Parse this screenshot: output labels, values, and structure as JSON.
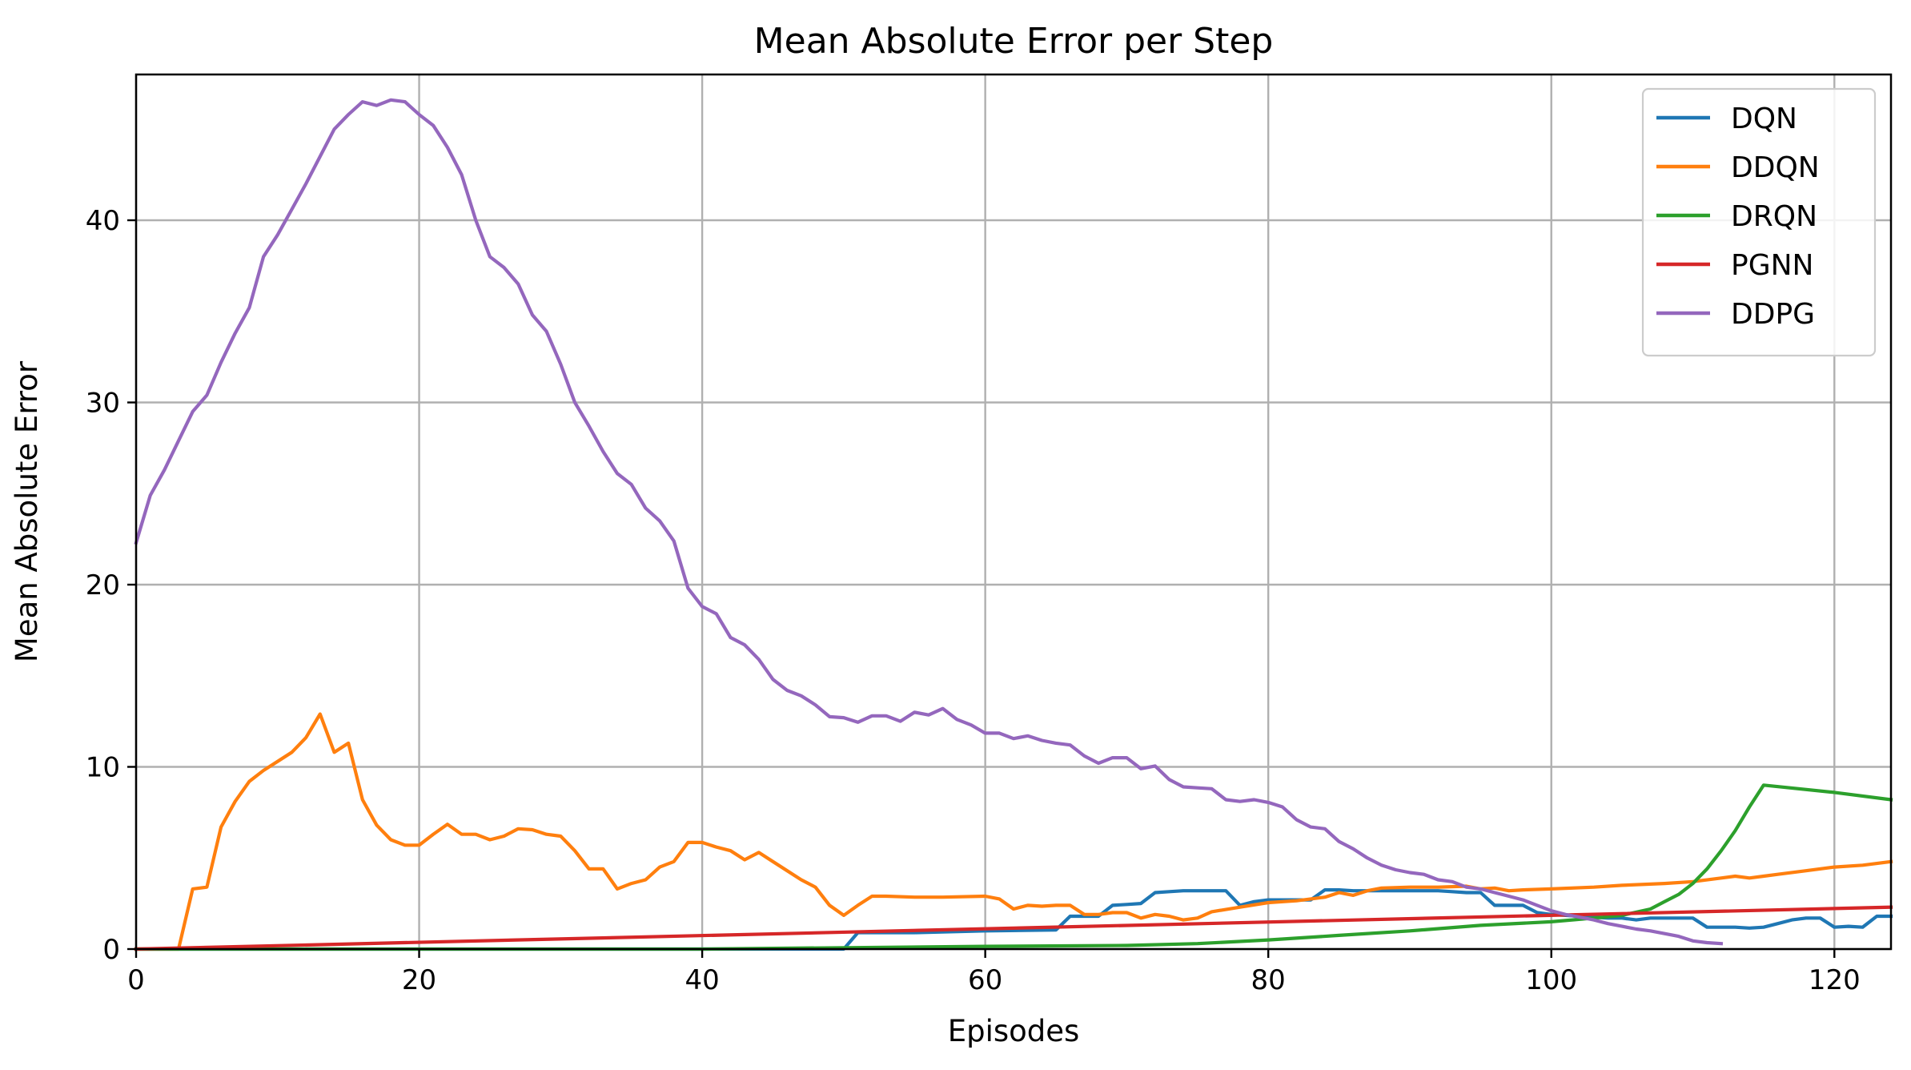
{
  "chart_data": {
    "type": "line",
    "title": "Mean Absolute Error per Step",
    "xlabel": "Episodes",
    "ylabel": "Mean Absolute Error",
    "xlim": [
      0,
      124
    ],
    "ylim": [
      0,
      48
    ],
    "xticks": [
      0,
      20,
      40,
      60,
      80,
      100,
      120
    ],
    "yticks": [
      0,
      10,
      20,
      30,
      40
    ],
    "grid": true,
    "legend_position": "top-right",
    "series": [
      {
        "name": "DQN",
        "color": "#1f77b4",
        "x": [
          0,
          50,
          51,
          52,
          55,
          60,
          65,
          66,
          67,
          68,
          69,
          70,
          71,
          72,
          73,
          74,
          75,
          76,
          77,
          78,
          79,
          80,
          81,
          82,
          83,
          84,
          85,
          86,
          87,
          88,
          90,
          92,
          93,
          94,
          95,
          96,
          97,
          98,
          99,
          100,
          102,
          104,
          105,
          106,
          107,
          108,
          110,
          111,
          112,
          113,
          114,
          115,
          116,
          117,
          118,
          119,
          120,
          121,
          122,
          123,
          124
        ],
        "y": [
          0,
          0,
          0.9,
          0.9,
          0.9,
          1.0,
          1.05,
          1.8,
          1.8,
          1.8,
          2.4,
          2.45,
          2.5,
          3.1,
          3.15,
          3.2,
          3.2,
          3.2,
          3.2,
          2.4,
          2.6,
          2.7,
          2.7,
          2.7,
          2.7,
          3.25,
          3.25,
          3.2,
          3.2,
          3.2,
          3.2,
          3.2,
          3.15,
          3.1,
          3.1,
          2.4,
          2.4,
          2.4,
          2.0,
          1.9,
          1.8,
          1.7,
          1.7,
          1.6,
          1.7,
          1.7,
          1.7,
          1.2,
          1.2,
          1.2,
          1.15,
          1.2,
          1.4,
          1.6,
          1.7,
          1.7,
          1.2,
          1.25,
          1.2,
          1.8,
          1.8
        ]
      },
      {
        "name": "DDQN",
        "color": "#ff7f0e",
        "x": [
          0,
          1,
          2,
          3,
          4,
          5,
          6,
          7,
          8,
          9,
          10,
          11,
          12,
          13,
          14,
          15,
          16,
          17,
          18,
          19,
          20,
          21,
          22,
          23,
          24,
          25,
          26,
          27,
          28,
          29,
          30,
          31,
          32,
          33,
          34,
          35,
          36,
          37,
          38,
          39,
          40,
          41,
          42,
          43,
          44,
          45,
          46,
          47,
          48,
          49,
          50,
          51,
          52,
          53,
          55,
          57,
          60,
          61,
          62,
          63,
          64,
          65,
          66,
          67,
          68,
          69,
          70,
          71,
          72,
          73,
          74,
          75,
          76,
          78,
          80,
          82,
          84,
          85,
          86,
          87,
          88,
          90,
          92,
          94,
          95,
          96,
          97,
          98,
          100,
          103,
          105,
          108,
          110,
          112,
          113,
          114,
          115,
          116,
          118,
          120,
          122,
          124
        ],
        "y": [
          0,
          0,
          0,
          0,
          3.3,
          3.4,
          6.7,
          8.1,
          9.2,
          9.8,
          10.3,
          10.8,
          11.6,
          12.9,
          10.8,
          11.3,
          8.2,
          6.8,
          6.0,
          5.7,
          5.7,
          6.3,
          6.85,
          6.3,
          6.3,
          6.0,
          6.2,
          6.6,
          6.55,
          6.3,
          6.2,
          5.4,
          4.4,
          4.4,
          3.3,
          3.6,
          3.8,
          4.5,
          4.8,
          5.85,
          5.85,
          5.6,
          5.4,
          4.9,
          5.3,
          4.8,
          4.3,
          3.8,
          3.4,
          2.4,
          1.85,
          2.4,
          2.9,
          2.9,
          2.85,
          2.85,
          2.9,
          2.75,
          2.2,
          2.4,
          2.35,
          2.4,
          2.4,
          1.9,
          1.9,
          2.0,
          2.0,
          1.7,
          1.9,
          1.8,
          1.6,
          1.7,
          2.05,
          2.3,
          2.55,
          2.65,
          2.85,
          3.1,
          2.95,
          3.2,
          3.35,
          3.4,
          3.4,
          3.45,
          3.3,
          3.35,
          3.2,
          3.25,
          3.3,
          3.4,
          3.5,
          3.6,
          3.7,
          3.9,
          4.0,
          3.9,
          4.0,
          4.1,
          4.3,
          4.5,
          4.6,
          4.8
        ]
      },
      {
        "name": "DRQN",
        "color": "#2ca02c",
        "x": [
          0,
          40,
          60,
          70,
          75,
          80,
          85,
          90,
          95,
          100,
          103,
          105,
          107,
          108,
          109,
          110,
          111,
          112,
          113,
          114,
          115,
          120,
          124
        ],
        "y": [
          0,
          0,
          0.15,
          0.2,
          0.3,
          0.5,
          0.75,
          1.0,
          1.3,
          1.5,
          1.7,
          1.85,
          2.2,
          2.6,
          3.0,
          3.6,
          4.4,
          5.4,
          6.5,
          7.8,
          9.0,
          8.6,
          8.2
        ]
      },
      {
        "name": "PGNN",
        "color": "#d62728",
        "x": [
          0,
          124
        ],
        "y": [
          0,
          2.3
        ]
      },
      {
        "name": "DDPG",
        "color": "#9467bd",
        "x": [
          0,
          1,
          2,
          3,
          4,
          5,
          6,
          7,
          8,
          9,
          10,
          11,
          12,
          13,
          14,
          15,
          16,
          17,
          18,
          19,
          20,
          21,
          22,
          23,
          24,
          25,
          26,
          27,
          28,
          29,
          30,
          31,
          32,
          33,
          34,
          35,
          36,
          37,
          38,
          39,
          40,
          41,
          42,
          43,
          44,
          45,
          46,
          47,
          48,
          49,
          50,
          51,
          52,
          53,
          54,
          55,
          56,
          57,
          58,
          59,
          60,
          61,
          62,
          63,
          64,
          65,
          66,
          67,
          68,
          69,
          70,
          71,
          72,
          73,
          74,
          75,
          76,
          77,
          78,
          79,
          80,
          81,
          82,
          83,
          84,
          85,
          86,
          87,
          88,
          89,
          90,
          91,
          92,
          93,
          94,
          95,
          96,
          97,
          98,
          99,
          100,
          101,
          102,
          103,
          104,
          105,
          106,
          107,
          108,
          109,
          110,
          111,
          112
        ],
        "y": [
          22.3,
          24.9,
          26.3,
          27.9,
          29.5,
          30.4,
          32.2,
          33.8,
          35.2,
          38.0,
          39.2,
          40.6,
          42.0,
          43.5,
          45.0,
          45.8,
          46.5,
          46.3,
          46.6,
          46.5,
          45.8,
          45.2,
          44.0,
          42.5,
          40.0,
          38.0,
          37.4,
          36.5,
          34.8,
          33.9,
          32.1,
          30.0,
          28.7,
          27.3,
          26.1,
          25.5,
          24.2,
          23.5,
          22.4,
          19.8,
          18.8,
          18.4,
          17.1,
          16.7,
          15.9,
          14.8,
          14.2,
          13.9,
          13.4,
          12.75,
          12.7,
          12.45,
          12.8,
          12.8,
          12.5,
          13.0,
          12.85,
          13.2,
          12.6,
          12.3,
          11.85,
          11.85,
          11.55,
          11.7,
          11.45,
          11.3,
          11.2,
          10.6,
          10.2,
          10.5,
          10.5,
          9.9,
          10.05,
          9.3,
          8.9,
          8.85,
          8.8,
          8.2,
          8.1,
          8.2,
          8.05,
          7.8,
          7.1,
          6.7,
          6.6,
          5.9,
          5.5,
          5.0,
          4.6,
          4.35,
          4.2,
          4.1,
          3.8,
          3.7,
          3.4,
          3.3,
          3.1,
          2.9,
          2.7,
          2.4,
          2.1,
          1.9,
          1.75,
          1.6,
          1.4,
          1.25,
          1.1,
          1.0,
          0.85,
          0.7,
          0.45,
          0.35,
          0.3
        ]
      }
    ]
  }
}
